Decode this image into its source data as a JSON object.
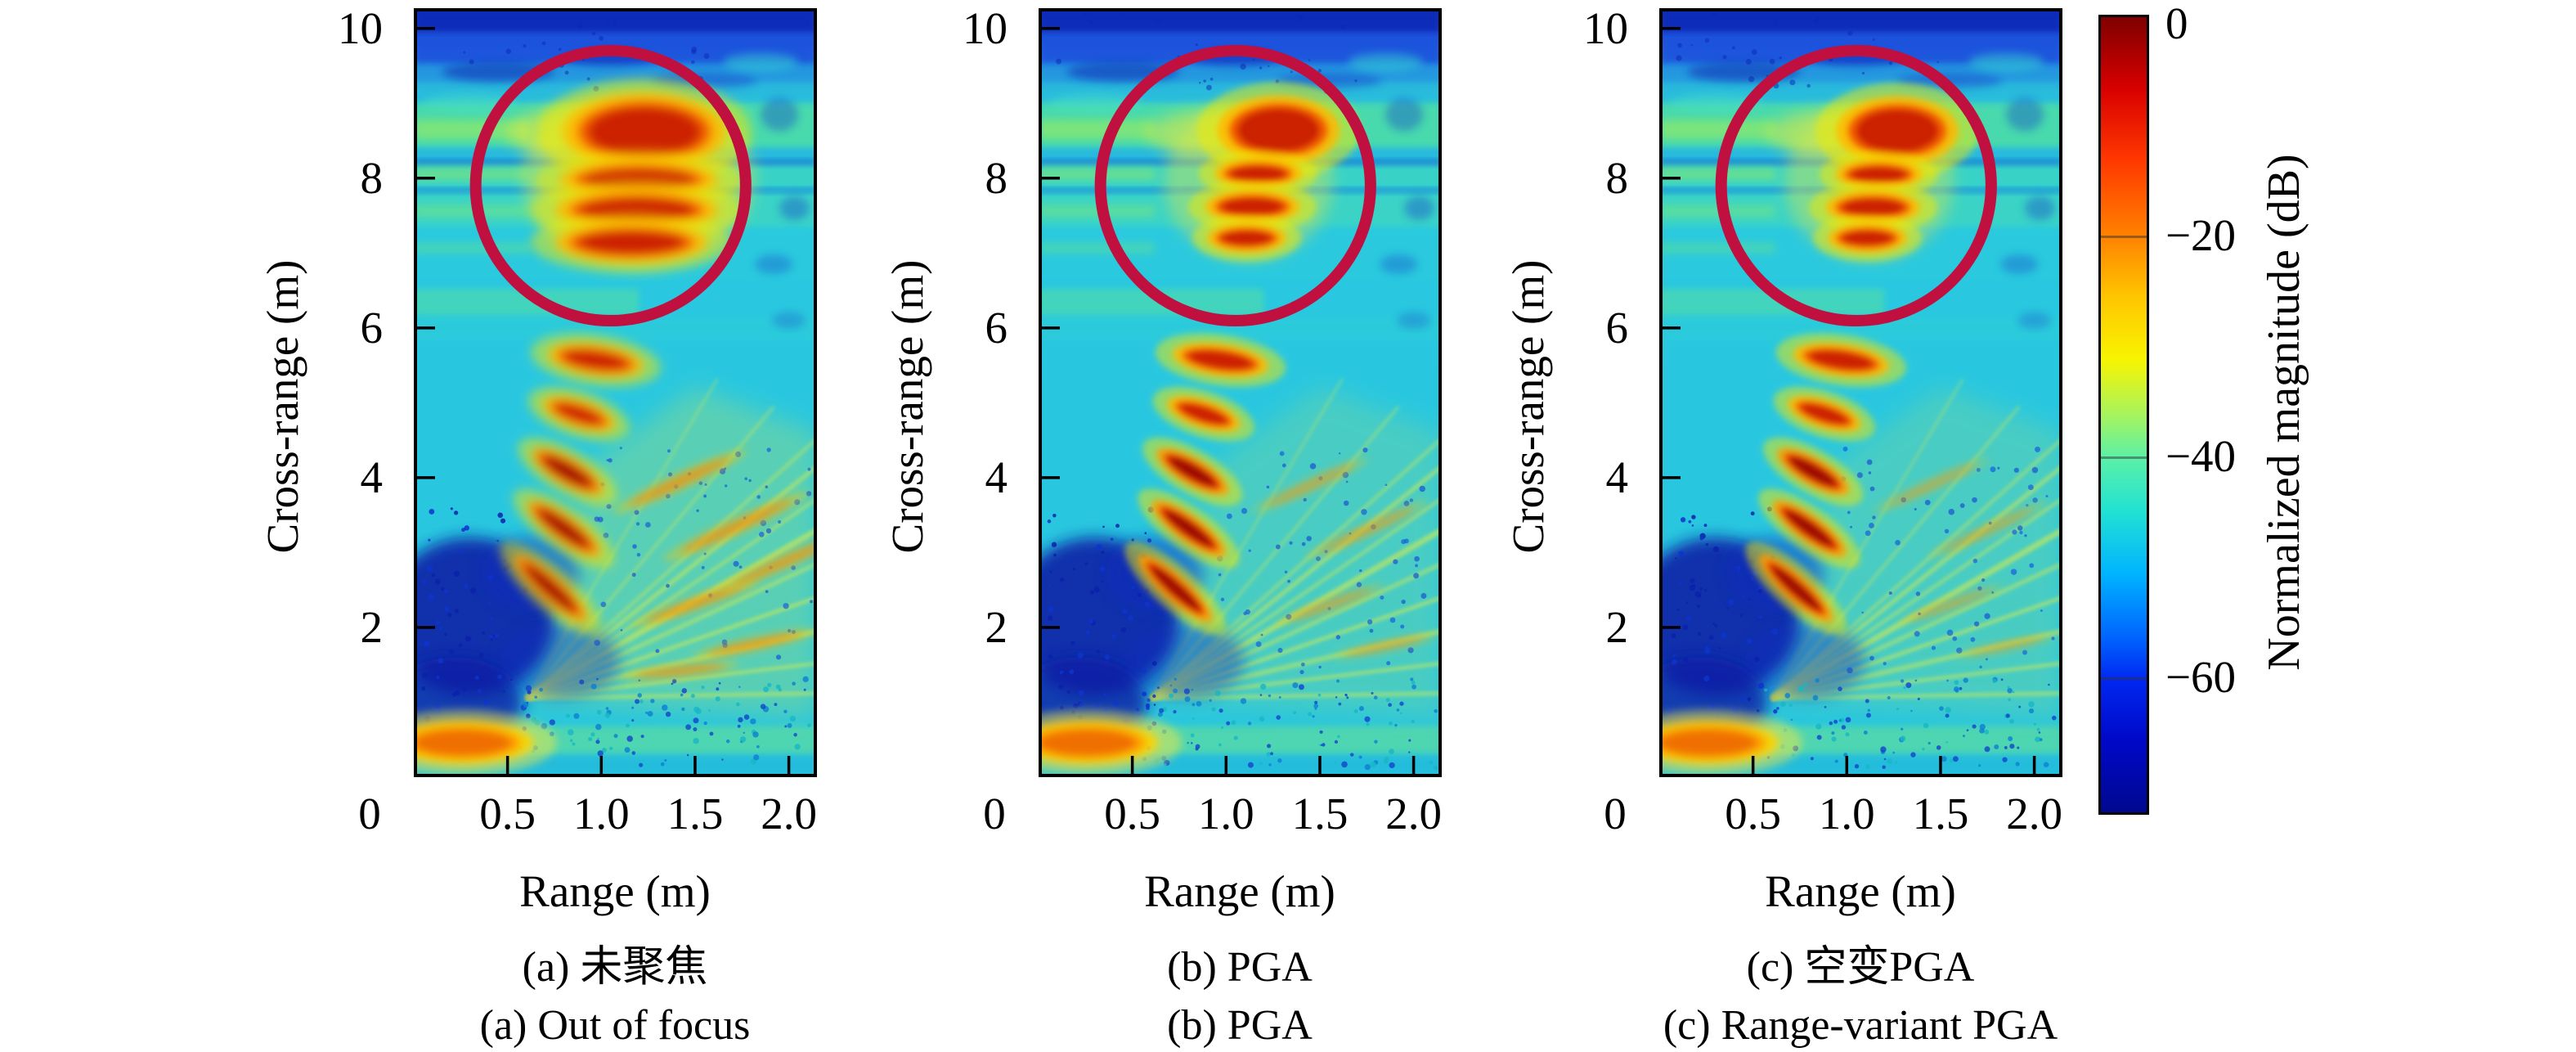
{
  "figure": {
    "background": "#ffffff",
    "panels": [
      {
        "id": "a",
        "caption_zh": "(a) 未聚焦",
        "caption_en": "(a) Out of focus",
        "xlabel": "Range (m)",
        "ylabel": "Cross-range (m)",
        "x_ticks": [
          "0",
          "0.5",
          "1.0",
          "1.5",
          "2.0"
        ],
        "y_ticks": [
          "10",
          "8",
          "6",
          "4",
          "2"
        ]
      },
      {
        "id": "b",
        "caption_zh": "(b) PGA",
        "caption_en": "(b) PGA",
        "xlabel": "Range (m)",
        "ylabel": "Cross-range (m)",
        "x_ticks": [
          "0",
          "0.5",
          "1.0",
          "1.5",
          "2.0"
        ],
        "y_ticks": [
          "10",
          "8",
          "6",
          "4",
          "2"
        ]
      },
      {
        "id": "c",
        "caption_zh": "(c) 空变PGA",
        "caption_en": "(c) Range-variant PGA",
        "xlabel": "Range (m)",
        "ylabel": "Cross-range (m)",
        "x_ticks": [
          "0",
          "0.5",
          "1.0",
          "1.5",
          "2.0"
        ],
        "y_ticks": [
          "10",
          "8",
          "6",
          "4",
          "2"
        ]
      }
    ],
    "colorbar": {
      "ticks": [
        "0",
        "−20",
        "−40",
        "−60"
      ],
      "label": "Normalized magnitude (dB)"
    }
  },
  "chart_data": {
    "type": "heatmap",
    "description": "Three SAR imaging results with jet colormap comparing autofocus methods: (a) out of focus, (b) PGA, (c) range-variant PGA. A crimson circle highlights a cluster of four point targets near cross-range 7-9 m that is defocused in (a) and focused in (b),(c).",
    "x": {
      "label": "Range (m)",
      "range": [
        0,
        2.15
      ],
      "ticks": [
        0,
        0.5,
        1.0,
        1.5,
        2.0
      ]
    },
    "y": {
      "label": "Cross-range (m)",
      "range": [
        0,
        10.27
      ],
      "ticks": [
        2,
        4,
        6,
        8,
        10
      ]
    },
    "colorbar": {
      "label": "Normalized magnitude (dB)",
      "range_db": [
        -72,
        0
      ],
      "ticks_db": [
        0,
        -20,
        -40,
        -60
      ],
      "colormap": "jet"
    },
    "annotation_circle": {
      "center_range_m": 1.05,
      "center_crossrange_m": 7.9,
      "radius_range_m": 0.72,
      "color": "#c01040",
      "stroke_px": 14
    },
    "targets_range_crossrange_m": [
      [
        0.73,
        2.52
      ],
      [
        0.8,
        3.32
      ],
      [
        0.82,
        4.08
      ],
      [
        0.88,
        4.85
      ],
      [
        0.97,
        5.57
      ],
      [
        1.11,
        7.2
      ],
      [
        1.14,
        7.62
      ],
      [
        1.17,
        8.06
      ],
      [
        1.28,
        8.64
      ],
      [
        0.26,
        0.46
      ]
    ],
    "render": {
      "palettes": {
        "dr": [
          "#9e0e00",
          "#e23000",
          "#ff9a00",
          "#f2ea00"
        ],
        "rd": [
          "#cc2000",
          "#f25600",
          "#ffb800",
          "#f2ea00"
        ],
        "or": [
          "#ef7000",
          "#ff9c00",
          "#ffd400",
          "#f0ea40"
        ]
      },
      "bands": [
        [
          10.27,
          9.93,
          "#0f2ab8",
          0.9
        ],
        [
          9.93,
          9.52,
          "#1d50dc",
          0.85
        ],
        [
          9.52,
          9.27,
          "#2384e0",
          0.5
        ],
        [
          9.27,
          9.0,
          "#27b2da",
          0.45
        ],
        [
          9.0,
          8.4,
          "#55e298",
          0.7
        ],
        [
          8.4,
          8.26,
          "#25a8da",
          0.5
        ],
        [
          8.24,
          8.17,
          "#1034c4",
          0.6
        ],
        [
          8.17,
          7.88,
          "#45dcb2",
          0.55
        ],
        [
          7.86,
          7.8,
          "#1034c4",
          0.45
        ],
        [
          7.8,
          7.34,
          "#4cdfae",
          0.5
        ],
        [
          7.34,
          6.64,
          "#2accdd",
          0.4
        ],
        [
          6.52,
          6.16,
          "#60e492",
          0.45,
          0,
          1.2
        ],
        [
          6.16,
          5.84,
          "#2ed2d4",
          0.35
        ],
        [
          0.68,
          0.3,
          "#7ce87c",
          0.45
        ],
        [
          0.3,
          0.02,
          "#24b4da",
          0.5
        ]
      ],
      "left_streaks": [
        [
          8.78,
          8.52,
          "#9cec5c",
          0.6
        ],
        [
          8.14,
          7.97,
          "#8ce868",
          0.55
        ],
        [
          7.64,
          7.48,
          "#7ae878",
          0.5
        ],
        [
          7.14,
          6.99,
          "#6ee682",
          0.4
        ]
      ],
      "patches": [
        [
          0.45,
          9.42,
          0.3,
          0.13,
          "#0c2cb4",
          0.55
        ],
        [
          1.05,
          9.6,
          0.22,
          0.1,
          "#0c2cb4",
          0.45
        ],
        [
          1.55,
          9.3,
          0.28,
          0.1,
          "#1240cc",
          0.45
        ],
        [
          1.95,
          8.85,
          0.1,
          0.22,
          "#1548c8",
          0.4
        ],
        [
          2.03,
          7.6,
          0.08,
          0.16,
          "#1548c8",
          0.4
        ],
        [
          1.92,
          6.85,
          0.1,
          0.13,
          "#1548c8",
          0.35
        ],
        [
          2.0,
          6.1,
          0.09,
          0.11,
          "#1548c8",
          0.3
        ],
        [
          0.3,
          9.0,
          0.25,
          0.12,
          "#49e0c2",
          0.5
        ],
        [
          1.85,
          9.55,
          0.2,
          0.12,
          "#35d8d2",
          0.5
        ]
      ],
      "dark_regions": [
        [
          0.3,
          2.15,
          0.45,
          1.05,
          "#0a1da6",
          0.88
        ],
        [
          0.22,
          1.0,
          0.36,
          0.6,
          "#0a1da6",
          0.8
        ],
        [
          0.62,
          2.72,
          0.26,
          0.5,
          "#0e2cc0",
          0.45
        ],
        [
          0.78,
          1.55,
          0.32,
          0.5,
          "#0e2cc0",
          0.4
        ]
      ],
      "fan_poly": {
        "pts": [
          [
            0.62,
            1.02
          ],
          [
            2.15,
            0.8
          ],
          [
            2.15,
            4.6
          ],
          [
            1.5,
            5.2
          ],
          [
            0.95,
            4.2
          ]
        ],
        "color": "#c8e456"
      },
      "fan_apex": [
        0.6,
        1.05
      ],
      "fan_lines": [
        [
          2.15,
          1.12,
          5,
          0.5
        ],
        [
          2.15,
          1.52,
          4,
          0.6
        ],
        [
          2.15,
          1.95,
          6,
          0.5
        ],
        [
          2.15,
          2.4,
          4,
          0.65
        ],
        [
          2.15,
          2.85,
          5,
          0.5
        ],
        [
          2.15,
          3.3,
          7,
          0.6
        ],
        [
          2.15,
          3.72,
          4,
          0.5
        ],
        [
          2.15,
          4.15,
          5,
          0.55
        ],
        [
          2.15,
          4.52,
          4,
          0.45
        ],
        [
          1.92,
          4.95,
          3.5,
          0.4
        ],
        [
          1.62,
          5.32,
          3,
          0.35
        ]
      ],
      "fan_color": "#d6ec4e",
      "speckle_regions": [
        [
          0.04,
          0.62,
          0.75,
          3.6,
          70,
          [
            "#0a22aa",
            "#0e34cc"
          ],
          0.85
        ],
        [
          0.55,
          2.12,
          0.12,
          1.32,
          110,
          [
            "#1143cc",
            "#0d7ed2",
            "#18b6c6"
          ],
          0.8
        ],
        [
          0.95,
          2.12,
          1.4,
          4.4,
          60,
          [
            "#1a52d2",
            "#1560d8"
          ],
          0.7
        ],
        [
          0.1,
          1.7,
          9.15,
          10.2,
          25,
          [
            "#0c28b2"
          ],
          0.5
        ]
      ],
      "chain": [
        [
          0.73,
          2.52,
          0.17,
          0.075,
          -42,
          "dr"
        ],
        [
          0.8,
          3.32,
          0.155,
          0.08,
          -36,
          "dr"
        ],
        [
          0.82,
          4.08,
          0.14,
          0.085,
          -30,
          "dr"
        ],
        [
          0.88,
          4.85,
          0.13,
          0.09,
          -18,
          "rd"
        ],
        [
          0.97,
          5.57,
          0.17,
          0.11,
          -8,
          "rd"
        ]
      ],
      "corner_blob": [
        0.26,
        0.46,
        0.26,
        0.17,
        0,
        "or"
      ],
      "panels": [
        {
          "cluster_halos": [
            [
              1.2,
              8.0,
              0.62,
              1.18,
              "#eee63c",
              0.42
            ],
            [
              1.02,
              8.6,
              0.52,
              0.4,
              "#e6ea3e",
              0.55
            ]
          ],
          "cluster": [
            [
              1.23,
              8.62,
              0.3,
              0.33,
              0,
              "rd"
            ],
            [
              1.2,
              7.97,
              0.29,
              0.15,
              0,
              "rd"
            ],
            [
              1.19,
              7.57,
              0.3,
              0.16,
              0,
              "rd"
            ],
            [
              1.16,
              7.14,
              0.28,
              0.15,
              0,
              "rd"
            ]
          ],
          "smears": [
            [
              1.42,
              3.95,
              0.3,
              0.07,
              25
            ],
            [
              1.72,
              3.35,
              0.33,
              0.07,
              25
            ],
            [
              1.5,
              2.32,
              0.28,
              0.06,
              20
            ],
            [
              1.82,
              1.78,
              0.26,
              0.055,
              12
            ],
            [
              1.42,
              1.42,
              0.24,
              0.05,
              6
            ],
            [
              1.98,
              2.88,
              0.3,
              0.06,
              24
            ]
          ],
          "smear_op": 0.6,
          "chain_blur": 6,
          "seed": 11
        },
        {
          "cluster_halos": [
            [
              1.12,
              7.95,
              0.45,
              1.05,
              "#eee63c",
              0.38
            ],
            [
              0.98,
              8.6,
              0.4,
              0.32,
              "#e6ea3e",
              0.55
            ]
          ],
          "cluster": [
            [
              1.28,
              8.64,
              0.22,
              0.29,
              0,
              "rd"
            ],
            [
              1.17,
              8.06,
              0.15,
              0.1,
              0,
              "rd"
            ],
            [
              1.14,
              7.62,
              0.165,
              0.115,
              0,
              "rd"
            ],
            [
              1.11,
              7.2,
              0.135,
              0.095,
              0,
              "rd"
            ]
          ],
          "smears": [
            [
              1.45,
              3.9,
              0.26,
              0.055,
              25
            ],
            [
              1.75,
              3.3,
              0.28,
              0.055,
              25
            ],
            [
              1.55,
              2.3,
              0.24,
              0.05,
              20
            ],
            [
              1.85,
              1.75,
              0.22,
              0.045,
              12
            ]
          ],
          "smear_op": 0.45,
          "chain_blur": 4,
          "seed": 23
        },
        {
          "cluster_halos": [
            [
              1.12,
              7.95,
              0.45,
              1.05,
              "#eee63c",
              0.38
            ],
            [
              0.98,
              8.6,
              0.4,
              0.32,
              "#e6ea3e",
              0.55
            ]
          ],
          "cluster": [
            [
              1.27,
              8.63,
              0.22,
              0.29,
              0,
              "rd"
            ],
            [
              1.17,
              8.05,
              0.15,
              0.1,
              0,
              "rd"
            ],
            [
              1.14,
              7.61,
              0.165,
              0.115,
              0,
              "rd"
            ],
            [
              1.11,
              7.2,
              0.135,
              0.095,
              0,
              "rd"
            ]
          ],
          "smears": [
            [
              1.45,
              3.9,
              0.26,
              0.05,
              25
            ],
            [
              1.75,
              3.3,
              0.27,
              0.05,
              25
            ],
            [
              1.55,
              2.3,
              0.23,
              0.045,
              20
            ],
            [
              1.85,
              1.75,
              0.21,
              0.04,
              12
            ]
          ],
          "smear_op": 0.4,
          "chain_blur": 4,
          "seed": 37
        }
      ]
    }
  }
}
